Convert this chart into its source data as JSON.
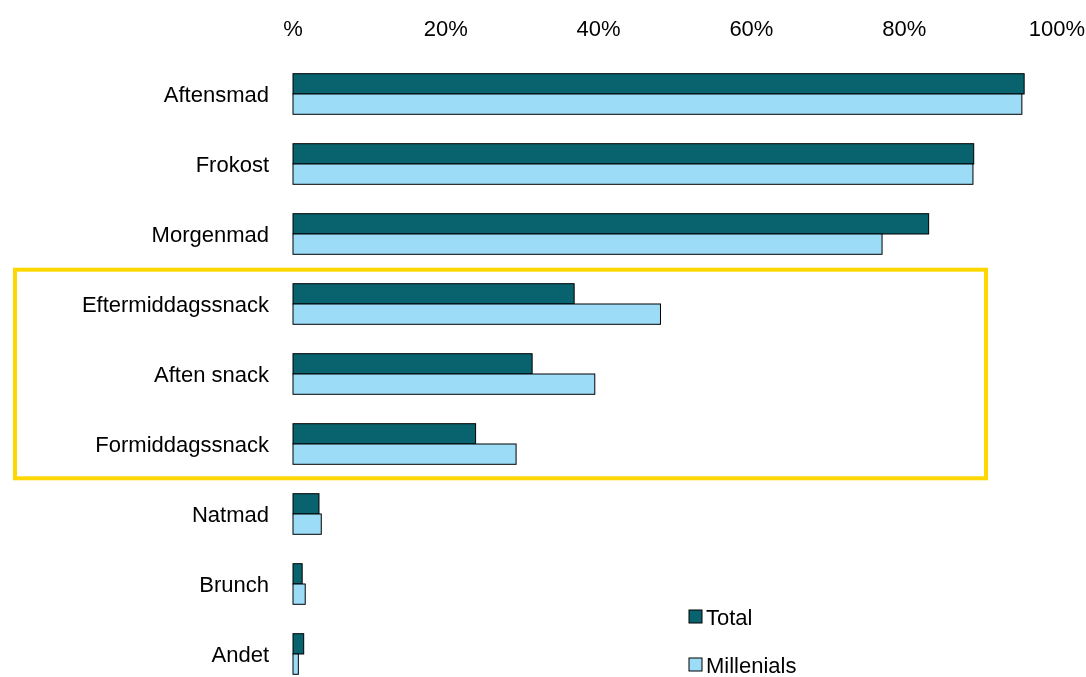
{
  "chart_data": {
    "type": "bar",
    "orientation": "horizontal",
    "categories": [
      "Aftensmad",
      "Frokost",
      "Morgenmad",
      "Eftermiddagssnack",
      "Aften snack",
      "Formiddagssnack",
      "Natmad",
      "Brunch",
      "Andet"
    ],
    "series": [
      {
        "name": "Total",
        "color": "#09636f",
        "values": [
          95.7,
          89.1,
          83.2,
          36.8,
          31.3,
          23.9,
          3.4,
          1.2,
          1.4
        ]
      },
      {
        "name": "Millenials",
        "color": "#9ddcf7",
        "values": [
          95.4,
          89.0,
          77.1,
          48.1,
          39.5,
          29.2,
          3.7,
          1.6,
          0.7
        ]
      }
    ],
    "xlim": [
      0,
      100
    ],
    "xticks": [
      {
        "value": 0,
        "label": "%"
      },
      {
        "value": 20,
        "label": "20%"
      },
      {
        "value": 40,
        "label": "40%"
      },
      {
        "value": 60,
        "label": "60%"
      },
      {
        "value": 80,
        "label": "80%"
      },
      {
        "value": 100,
        "label": "100%"
      }
    ],
    "legend": "bottom right",
    "grid": false
  }
}
